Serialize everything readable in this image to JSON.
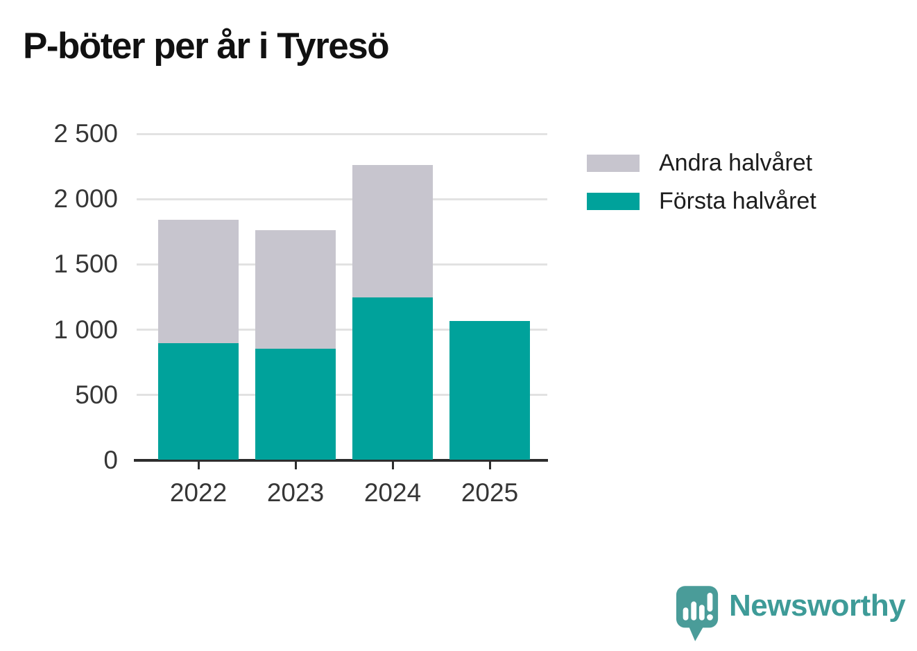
{
  "title": "P-böter per år i Tyresö",
  "colors": {
    "first_half": "#00a29b",
    "second_half": "#c7c5ce",
    "axis": "#2d2d2d",
    "gridline": "#e2e2e2",
    "tick_text": "#363636",
    "title_text": "#111111",
    "logo_teal": "#4a9c99",
    "logo_text_teal": "#3e9b98"
  },
  "legend": {
    "items": [
      {
        "label": "Andra halvåret",
        "color": "#c7c5ce"
      },
      {
        "label": "Första halvåret",
        "color": "#00a29b"
      }
    ]
  },
  "branding": {
    "name": "Newsworthy"
  },
  "chart_data": {
    "type": "bar",
    "stacked": true,
    "title": "P-böter per år i Tyresö",
    "categories": [
      "2022",
      "2023",
      "2024",
      "2025"
    ],
    "series": [
      {
        "name": "Första halvåret",
        "color": "#00a29b",
        "values": [
          890,
          850,
          1240,
          1060
        ]
      },
      {
        "name": "Andra halvåret",
        "color": "#c7c5ce",
        "values": [
          945,
          905,
          1015,
          0
        ]
      }
    ],
    "totals": [
      1835,
      1755,
      2255,
      1060
    ],
    "ylim": [
      0,
      2500
    ],
    "yticks": [
      0,
      500,
      1000,
      1500,
      2000,
      2500
    ],
    "ytick_labels": [
      "0",
      "500",
      "1 000",
      "1 500",
      "2 000",
      "2 500"
    ],
    "xlabel": "",
    "ylabel": "",
    "grid": "horizontal",
    "legend_position": "right"
  }
}
